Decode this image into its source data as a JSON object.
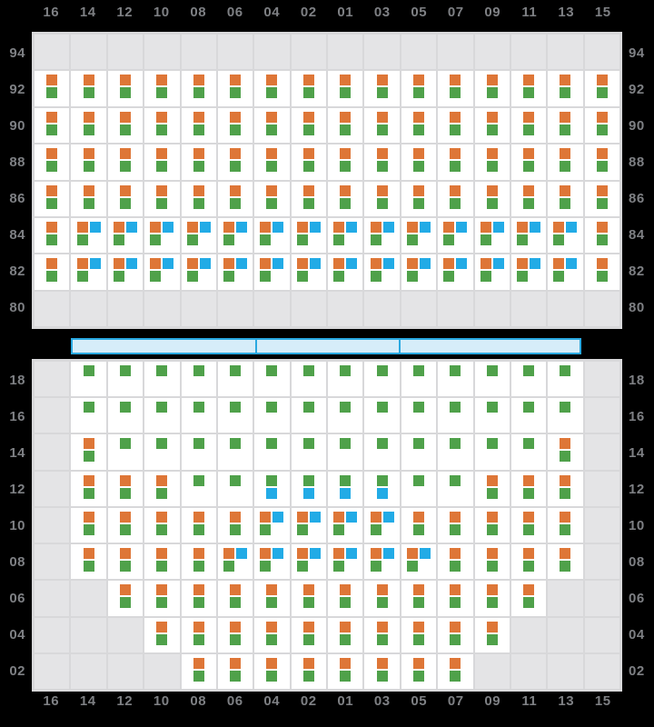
{
  "column_labels": [
    "16",
    "14",
    "12",
    "10",
    "08",
    "06",
    "04",
    "02",
    "01",
    "03",
    "05",
    "07",
    "09",
    "11",
    "13",
    "15"
  ],
  "colors": {
    "orange": "#de7637",
    "green": "#4fa14a",
    "blue": "#22abe6",
    "bar_fill": "#d6edf9",
    "bar_border": "#2aa9e1",
    "empty_cell": "#e4e4e6",
    "panel_bg": "#d8d8da",
    "label_gray": "#7e8084",
    "background": "#000000"
  },
  "cell_types": {
    "x": {
      "empty": true,
      "layout": "none",
      "squares": []
    },
    "og": {
      "empty": false,
      "layout": "stack",
      "squares": [
        "orange",
        "green"
      ]
    },
    "g": {
      "empty": false,
      "layout": "stack",
      "squares": [
        "green"
      ]
    },
    "gb": {
      "empty": false,
      "layout": "stack",
      "squares": [
        "green",
        "blue"
      ]
    },
    "obg": {
      "empty": false,
      "layout": "grid2",
      "squares": [
        "orange",
        "blue",
        "green"
      ]
    }
  },
  "top_panel": {
    "rows": [
      {
        "label": "94",
        "cells": [
          "x",
          "x",
          "x",
          "x",
          "x",
          "x",
          "x",
          "x",
          "x",
          "x",
          "x",
          "x",
          "x",
          "x",
          "x",
          "x"
        ]
      },
      {
        "label": "92",
        "cells": [
          "og",
          "og",
          "og",
          "og",
          "og",
          "og",
          "og",
          "og",
          "og",
          "og",
          "og",
          "og",
          "og",
          "og",
          "og",
          "og"
        ]
      },
      {
        "label": "90",
        "cells": [
          "og",
          "og",
          "og",
          "og",
          "og",
          "og",
          "og",
          "og",
          "og",
          "og",
          "og",
          "og",
          "og",
          "og",
          "og",
          "og"
        ]
      },
      {
        "label": "88",
        "cells": [
          "og",
          "og",
          "og",
          "og",
          "og",
          "og",
          "og",
          "og",
          "og",
          "og",
          "og",
          "og",
          "og",
          "og",
          "og",
          "og"
        ]
      },
      {
        "label": "86",
        "cells": [
          "og",
          "og",
          "og",
          "og",
          "og",
          "og",
          "og",
          "og",
          "og",
          "og",
          "og",
          "og",
          "og",
          "og",
          "og",
          "og"
        ]
      },
      {
        "label": "84",
        "cells": [
          "og",
          "obg",
          "obg",
          "obg",
          "obg",
          "obg",
          "obg",
          "obg",
          "obg",
          "obg",
          "obg",
          "obg",
          "obg",
          "obg",
          "obg",
          "og"
        ]
      },
      {
        "label": "82",
        "cells": [
          "og",
          "obg",
          "obg",
          "obg",
          "obg",
          "obg",
          "obg",
          "obg",
          "obg",
          "obg",
          "obg",
          "obg",
          "obg",
          "obg",
          "obg",
          "og"
        ]
      },
      {
        "label": "80",
        "cells": [
          "x",
          "x",
          "x",
          "x",
          "x",
          "x",
          "x",
          "x",
          "x",
          "x",
          "x",
          "x",
          "x",
          "x",
          "x",
          "x"
        ]
      }
    ]
  },
  "hatch_bar": {
    "segment_widths_pct": [
      36,
      28.3,
      35.7
    ]
  },
  "bottom_panel": {
    "rows": [
      {
        "label": "18",
        "cells": [
          "x",
          "g",
          "g",
          "g",
          "g",
          "g",
          "g",
          "g",
          "g",
          "g",
          "g",
          "g",
          "g",
          "g",
          "g",
          "x"
        ]
      },
      {
        "label": "16",
        "cells": [
          "x",
          "g",
          "g",
          "g",
          "g",
          "g",
          "g",
          "g",
          "g",
          "g",
          "g",
          "g",
          "g",
          "g",
          "g",
          "x"
        ]
      },
      {
        "label": "14",
        "cells": [
          "x",
          "og",
          "g",
          "g",
          "g",
          "g",
          "g",
          "g",
          "g",
          "g",
          "g",
          "g",
          "g",
          "g",
          "og",
          "x"
        ]
      },
      {
        "label": "12",
        "cells": [
          "x",
          "og",
          "og",
          "og",
          "g",
          "g",
          "gb",
          "gb",
          "gb",
          "gb",
          "g",
          "g",
          "og",
          "og",
          "og",
          "x"
        ]
      },
      {
        "label": "10",
        "cells": [
          "x",
          "og",
          "og",
          "og",
          "og",
          "og",
          "obg",
          "obg",
          "obg",
          "obg",
          "og",
          "og",
          "og",
          "og",
          "og",
          "x"
        ]
      },
      {
        "label": "08",
        "cells": [
          "x",
          "og",
          "og",
          "og",
          "og",
          "obg",
          "obg",
          "obg",
          "obg",
          "obg",
          "obg",
          "og",
          "og",
          "og",
          "og",
          "x"
        ]
      },
      {
        "label": "06",
        "cells": [
          "x",
          "x",
          "og",
          "og",
          "og",
          "og",
          "og",
          "og",
          "og",
          "og",
          "og",
          "og",
          "og",
          "og",
          "x",
          "x"
        ]
      },
      {
        "label": "04",
        "cells": [
          "x",
          "x",
          "x",
          "og",
          "og",
          "og",
          "og",
          "og",
          "og",
          "og",
          "og",
          "og",
          "og",
          "x",
          "x",
          "x"
        ]
      },
      {
        "label": "02",
        "cells": [
          "x",
          "x",
          "x",
          "x",
          "og",
          "og",
          "og",
          "og",
          "og",
          "og",
          "og",
          "og",
          "x",
          "x",
          "x",
          "x"
        ]
      }
    ]
  }
}
